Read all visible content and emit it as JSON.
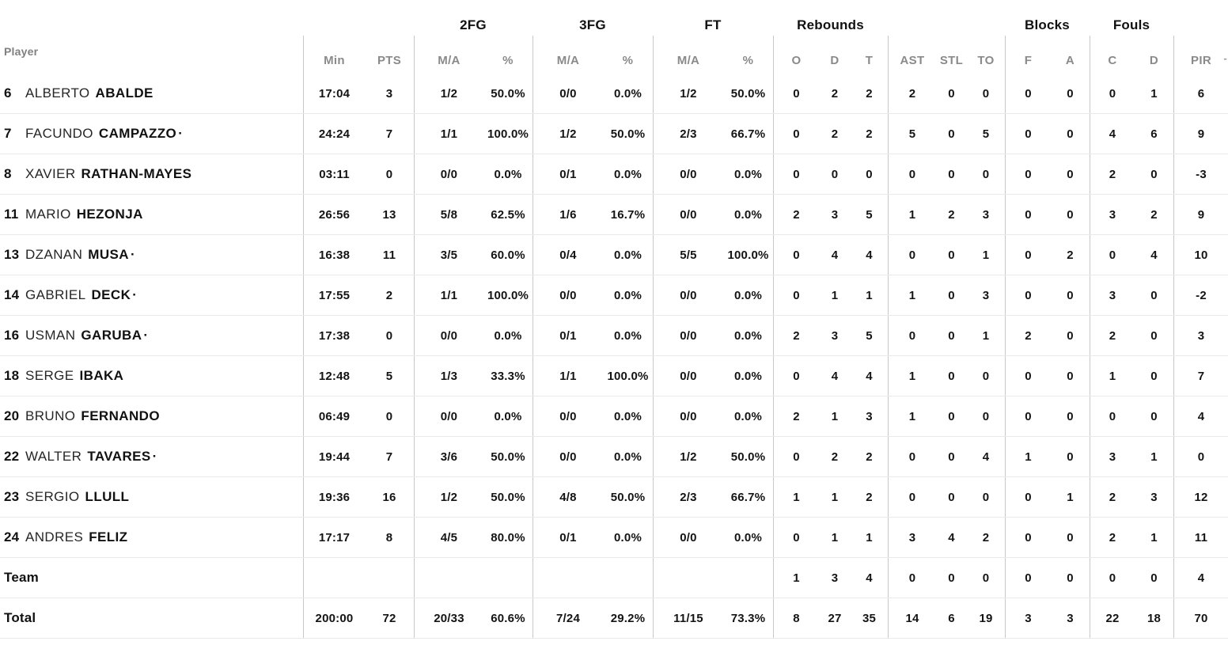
{
  "colors": {
    "background": "#ffffff",
    "text": "#141414",
    "muted_header": "#8a8a8a",
    "group_line": "#c9c9c9",
    "row_line": "#e9e9e9"
  },
  "header": {
    "player_label": "Player",
    "groups": {
      "fg2": "2FG",
      "fg3": "3FG",
      "ft": "FT",
      "rebounds": "Rebounds",
      "blocks": "Blocks",
      "fouls": "Fouls"
    },
    "columns": {
      "min": "Min",
      "pts": "PTS",
      "ma": "M/A",
      "pct": "%",
      "reb_o": "O",
      "reb_d": "D",
      "reb_t": "T",
      "ast": "AST",
      "stl": "STL",
      "to": "TO",
      "blk_f": "F",
      "blk_a": "A",
      "foul_c": "C",
      "foul_d": "D",
      "pir": "PIR"
    },
    "sort_indicator": "-"
  },
  "starter_indicator": "·",
  "rows": [
    {
      "type": "player",
      "num": "6",
      "first": "ALBERTO",
      "last": "ABALDE",
      "starter": false,
      "min": "17:04",
      "pts": "3",
      "f2": "1/2",
      "f2p": "50.0%",
      "f3": "0/0",
      "f3p": "0.0%",
      "ft": "1/2",
      "ftp": "50.0%",
      "ro": "0",
      "rd": "2",
      "rt": "2",
      "ast": "2",
      "stl": "0",
      "to": "0",
      "bf": "0",
      "ba": "0",
      "fc": "0",
      "fd": "1",
      "pir": "6"
    },
    {
      "type": "player",
      "num": "7",
      "first": "FACUNDO",
      "last": "CAMPAZZO",
      "starter": true,
      "min": "24:24",
      "pts": "7",
      "f2": "1/1",
      "f2p": "100.0%",
      "f3": "1/2",
      "f3p": "50.0%",
      "ft": "2/3",
      "ftp": "66.7%",
      "ro": "0",
      "rd": "2",
      "rt": "2",
      "ast": "5",
      "stl": "0",
      "to": "5",
      "bf": "0",
      "ba": "0",
      "fc": "4",
      "fd": "6",
      "pir": "9"
    },
    {
      "type": "player",
      "num": "8",
      "first": "XAVIER",
      "last": "RATHAN-MAYES",
      "starter": false,
      "min": "03:11",
      "pts": "0",
      "f2": "0/0",
      "f2p": "0.0%",
      "f3": "0/1",
      "f3p": "0.0%",
      "ft": "0/0",
      "ftp": "0.0%",
      "ro": "0",
      "rd": "0",
      "rt": "0",
      "ast": "0",
      "stl": "0",
      "to": "0",
      "bf": "0",
      "ba": "0",
      "fc": "2",
      "fd": "0",
      "pir": "-3"
    },
    {
      "type": "player",
      "num": "11",
      "first": "MARIO",
      "last": "HEZONJA",
      "starter": false,
      "min": "26:56",
      "pts": "13",
      "f2": "5/8",
      "f2p": "62.5%",
      "f3": "1/6",
      "f3p": "16.7%",
      "ft": "0/0",
      "ftp": "0.0%",
      "ro": "2",
      "rd": "3",
      "rt": "5",
      "ast": "1",
      "stl": "2",
      "to": "3",
      "bf": "0",
      "ba": "0",
      "fc": "3",
      "fd": "2",
      "pir": "9"
    },
    {
      "type": "player",
      "num": "13",
      "first": "DZANAN",
      "last": "MUSA",
      "starter": true,
      "min": "16:38",
      "pts": "11",
      "f2": "3/5",
      "f2p": "60.0%",
      "f3": "0/4",
      "f3p": "0.0%",
      "ft": "5/5",
      "ftp": "100.0%",
      "ro": "0",
      "rd": "4",
      "rt": "4",
      "ast": "0",
      "stl": "0",
      "to": "1",
      "bf": "0",
      "ba": "2",
      "fc": "0",
      "fd": "4",
      "pir": "10"
    },
    {
      "type": "player",
      "num": "14",
      "first": "GABRIEL",
      "last": "DECK",
      "starter": true,
      "min": "17:55",
      "pts": "2",
      "f2": "1/1",
      "f2p": "100.0%",
      "f3": "0/0",
      "f3p": "0.0%",
      "ft": "0/0",
      "ftp": "0.0%",
      "ro": "0",
      "rd": "1",
      "rt": "1",
      "ast": "1",
      "stl": "0",
      "to": "3",
      "bf": "0",
      "ba": "0",
      "fc": "3",
      "fd": "0",
      "pir": "-2"
    },
    {
      "type": "player",
      "num": "16",
      "first": "USMAN",
      "last": "GARUBA",
      "starter": true,
      "min": "17:38",
      "pts": "0",
      "f2": "0/0",
      "f2p": "0.0%",
      "f3": "0/1",
      "f3p": "0.0%",
      "ft": "0/0",
      "ftp": "0.0%",
      "ro": "2",
      "rd": "3",
      "rt": "5",
      "ast": "0",
      "stl": "0",
      "to": "1",
      "bf": "2",
      "ba": "0",
      "fc": "2",
      "fd": "0",
      "pir": "3"
    },
    {
      "type": "player",
      "num": "18",
      "first": "SERGE",
      "last": "IBAKA",
      "starter": false,
      "min": "12:48",
      "pts": "5",
      "f2": "1/3",
      "f2p": "33.3%",
      "f3": "1/1",
      "f3p": "100.0%",
      "ft": "0/0",
      "ftp": "0.0%",
      "ro": "0",
      "rd": "4",
      "rt": "4",
      "ast": "1",
      "stl": "0",
      "to": "0",
      "bf": "0",
      "ba": "0",
      "fc": "1",
      "fd": "0",
      "pir": "7"
    },
    {
      "type": "player",
      "num": "20",
      "first": "BRUNO",
      "last": "FERNANDO",
      "starter": false,
      "min": "06:49",
      "pts": "0",
      "f2": "0/0",
      "f2p": "0.0%",
      "f3": "0/0",
      "f3p": "0.0%",
      "ft": "0/0",
      "ftp": "0.0%",
      "ro": "2",
      "rd": "1",
      "rt": "3",
      "ast": "1",
      "stl": "0",
      "to": "0",
      "bf": "0",
      "ba": "0",
      "fc": "0",
      "fd": "0",
      "pir": "4"
    },
    {
      "type": "player",
      "num": "22",
      "first": "WALTER",
      "last": "TAVARES",
      "starter": true,
      "min": "19:44",
      "pts": "7",
      "f2": "3/6",
      "f2p": "50.0%",
      "f3": "0/0",
      "f3p": "0.0%",
      "ft": "1/2",
      "ftp": "50.0%",
      "ro": "0",
      "rd": "2",
      "rt": "2",
      "ast": "0",
      "stl": "0",
      "to": "4",
      "bf": "1",
      "ba": "0",
      "fc": "3",
      "fd": "1",
      "pir": "0"
    },
    {
      "type": "player",
      "num": "23",
      "first": "SERGIO",
      "last": "LLULL",
      "starter": false,
      "min": "19:36",
      "pts": "16",
      "f2": "1/2",
      "f2p": "50.0%",
      "f3": "4/8",
      "f3p": "50.0%",
      "ft": "2/3",
      "ftp": "66.7%",
      "ro": "1",
      "rd": "1",
      "rt": "2",
      "ast": "0",
      "stl": "0",
      "to": "0",
      "bf": "0",
      "ba": "1",
      "fc": "2",
      "fd": "3",
      "pir": "12"
    },
    {
      "type": "player",
      "num": "24",
      "first": "ANDRES",
      "last": "FELIZ",
      "starter": false,
      "min": "17:17",
      "pts": "8",
      "f2": "4/5",
      "f2p": "80.0%",
      "f3": "0/1",
      "f3p": "0.0%",
      "ft": "0/0",
      "ftp": "0.0%",
      "ro": "0",
      "rd": "1",
      "rt": "1",
      "ast": "3",
      "stl": "4",
      "to": "2",
      "bf": "0",
      "ba": "0",
      "fc": "2",
      "fd": "1",
      "pir": "11"
    },
    {
      "type": "summary",
      "label": "Team",
      "min": "",
      "pts": "",
      "f2": "",
      "f2p": "",
      "f3": "",
      "f3p": "",
      "ft": "",
      "ftp": "",
      "ro": "1",
      "rd": "3",
      "rt": "4",
      "ast": "0",
      "stl": "0",
      "to": "0",
      "bf": "0",
      "ba": "0",
      "fc": "0",
      "fd": "0",
      "pir": "4"
    },
    {
      "type": "summary",
      "label": "Total",
      "min": "200:00",
      "pts": "72",
      "f2": "20/33",
      "f2p": "60.6%",
      "f3": "7/24",
      "f3p": "29.2%",
      "ft": "11/15",
      "ftp": "73.3%",
      "ro": "8",
      "rd": "27",
      "rt": "35",
      "ast": "14",
      "stl": "6",
      "to": "19",
      "bf": "3",
      "ba": "3",
      "fc": "22",
      "fd": "18",
      "pir": "70"
    }
  ]
}
